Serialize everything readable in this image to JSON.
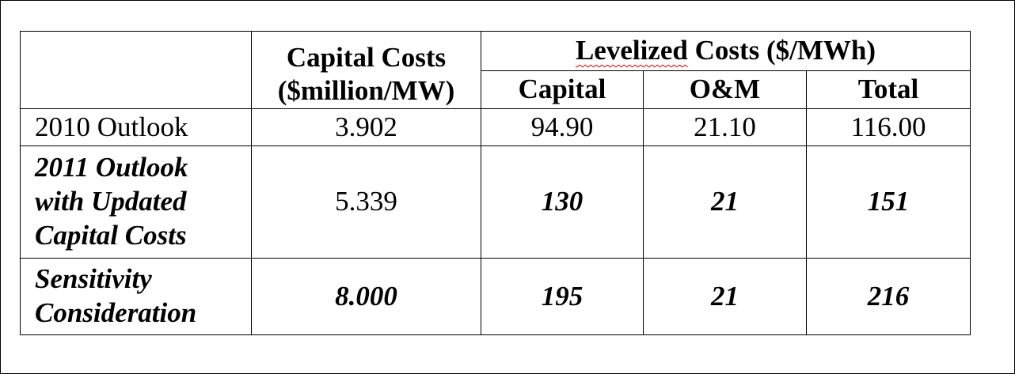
{
  "table": {
    "header": {
      "capital_costs_line1": "Capital Costs",
      "capital_costs_line2": "($million/MW)",
      "levelized_prefix": "Levelized",
      "levelized_suffix": " Costs ($/MWh)",
      "sub_capital": "Capital",
      "sub_om": "O&M",
      "sub_total": "Total"
    },
    "rows": [
      {
        "label": "2010 Outlook",
        "capital_cost": "3.902",
        "levelized_capital": "94.90",
        "levelized_om": "21.10",
        "levelized_total": "116.00"
      },
      {
        "label_line1": "2011 Outlook",
        "label_line2": "with Updated",
        "label_line3": "Capital Costs",
        "capital_cost": "5.339",
        "levelized_capital": "130",
        "levelized_om": "21",
        "levelized_total": "151"
      },
      {
        "label_line1": "Sensitivity",
        "label_line2": "Consideration",
        "capital_cost": "8.000",
        "levelized_capital": "195",
        "levelized_om": "21",
        "levelized_total": "216"
      }
    ]
  },
  "colors": {
    "spellcheck_underline": "#d00000",
    "border": "#000000",
    "background": "#ffffff"
  }
}
